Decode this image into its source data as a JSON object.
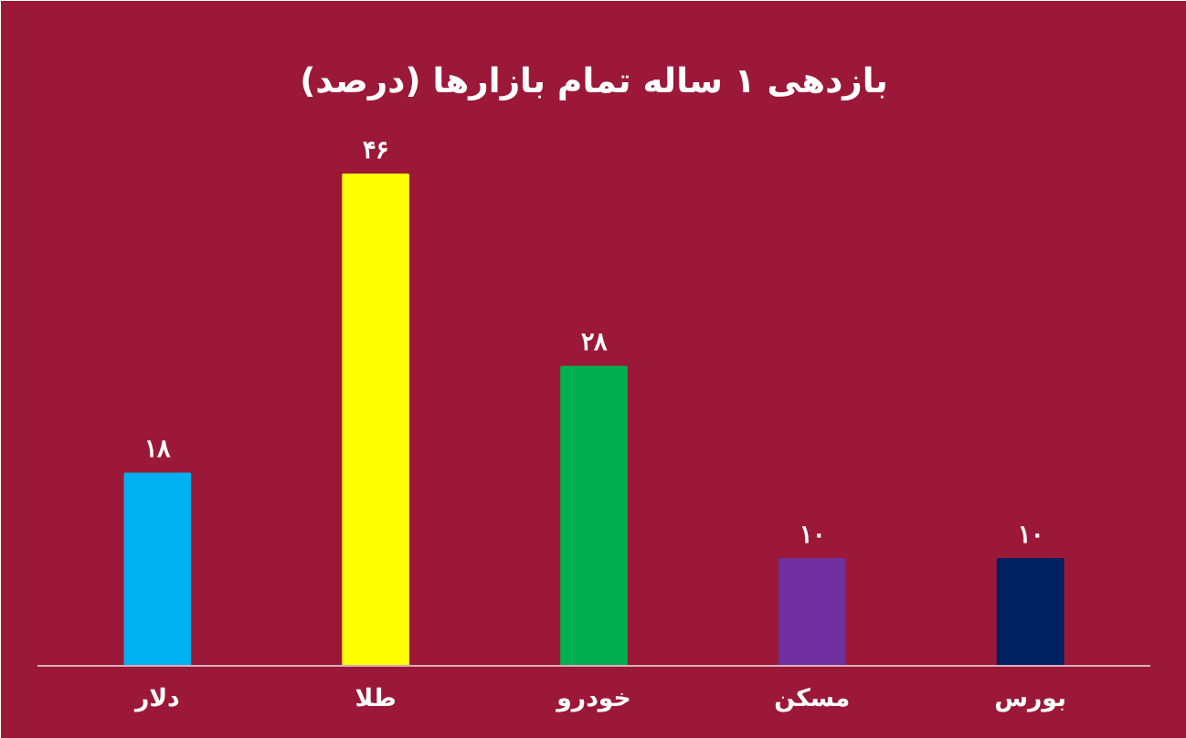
{
  "chart_data": {
    "type": "bar",
    "title": "بازدهی ۱ ساله تمام بازارها (درصد)",
    "categories": [
      "دلار",
      "طلا",
      "خودرو",
      "مسکن",
      "بورس"
    ],
    "values": [
      18,
      46,
      28,
      10,
      10
    ],
    "colors": [
      "#00b0f0",
      "#ffff00",
      "#00b050",
      "#7030a0",
      "#002060"
    ],
    "value_labels": [
      "۱۸",
      "۴۶",
      "۲۸",
      "۱۰",
      "۱۰"
    ],
    "grid": false
  }
}
